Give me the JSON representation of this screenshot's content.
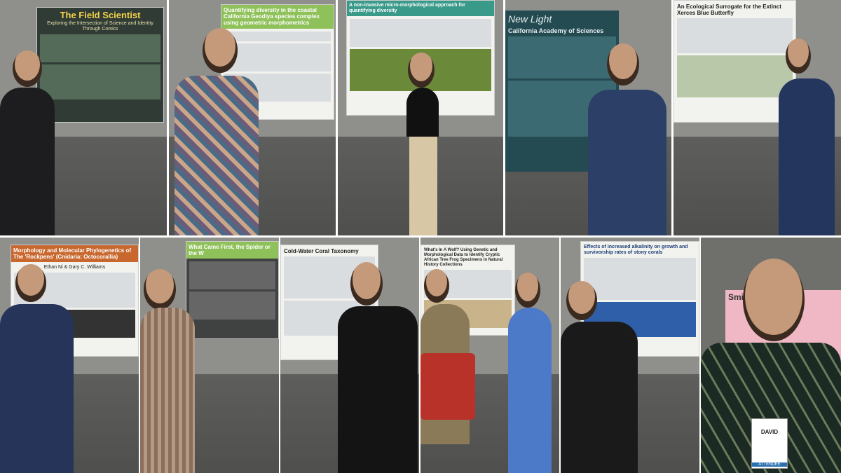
{
  "panels": [
    {
      "poster_title": "The Field Scientist",
      "poster_subtitle": "Exploring the Intersection of Science and Identity Through Comics"
    },
    {
      "poster_title": "Quantifying diversity in the coastal California Geodiya species complex using geometric morphometrics"
    },
    {
      "poster_title": "A non-invasive micro-morphological approach for quantifying diversity"
    },
    {
      "poster_title": "New Light",
      "poster_org": "California Academy of Sciences"
    },
    {
      "poster_title": "An Ecological Surrogate for the Extinct Xerces Blue Butterfly"
    },
    {
      "poster_title": "Morphology and Molecular Phylogenetics of The 'Rockpens' (Cnidaria: Octocorallia)",
      "poster_authors": "Ethan Ni & Gary C. Williams"
    },
    {
      "poster_title": "What Came First, the Spider or the W"
    },
    {
      "poster_title": "Cold-Water Coral Taxonomy"
    },
    {
      "poster_title": "What's In A Wolf? Using Genetic and Morphological Data to Identify Cryptic African Tree Frog Specimens in Natural History Collections"
    },
    {
      "poster_title": "Effects of increased alkalinity on growth and survivorship rates of stony corals"
    },
    {
      "poster_title": "Smithso",
      "badge_name": "DAVID",
      "badge_role": "ATTENDEE"
    }
  ]
}
